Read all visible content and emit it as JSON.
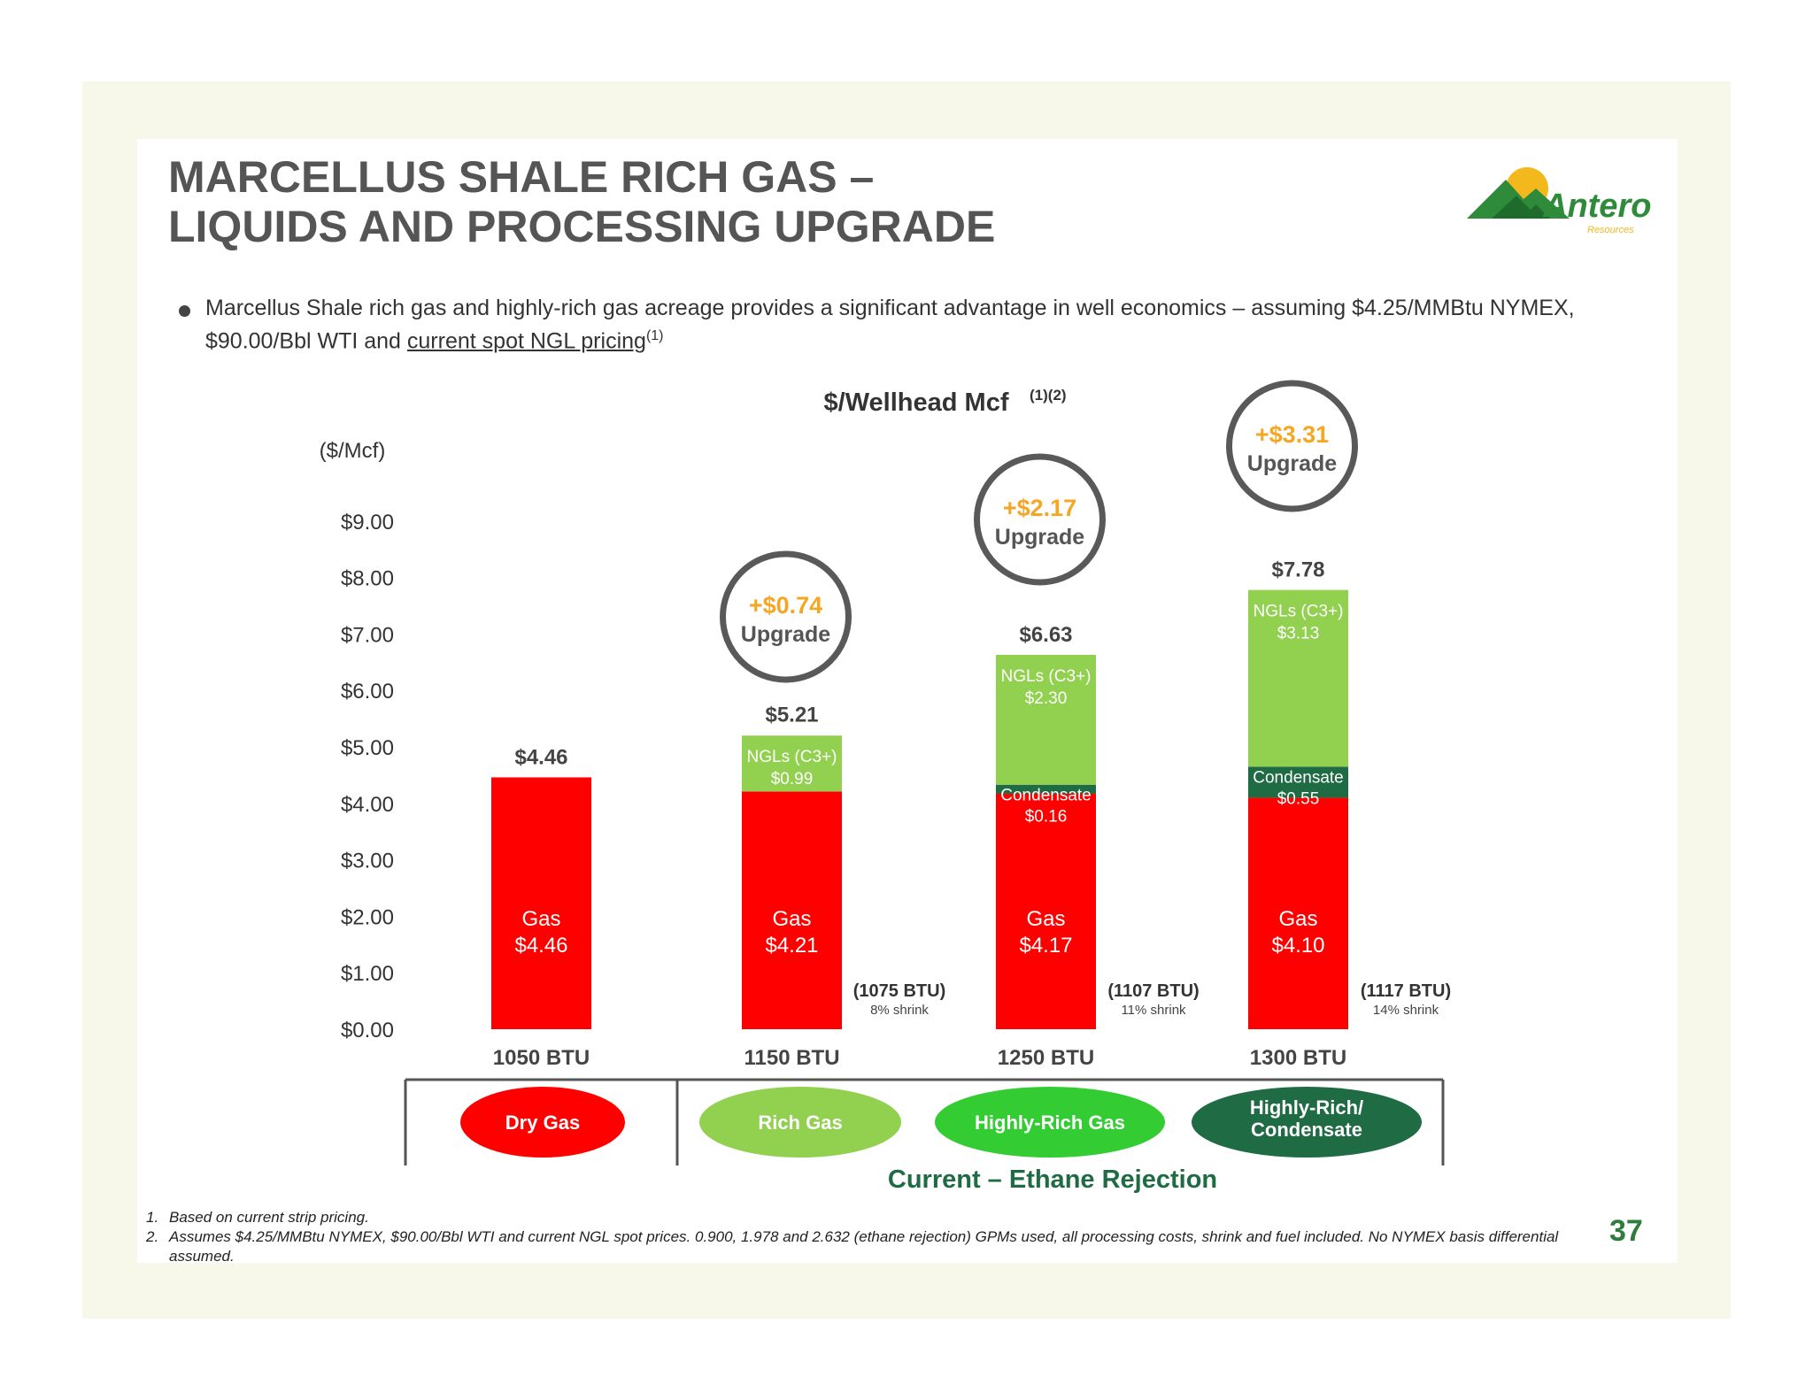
{
  "slide": {
    "title_line1": "MARCELLUS SHALE RICH GAS –",
    "title_line2": "LIQUIDS AND PROCESSING UPGRADE",
    "bullet_text": "Marcellus Shale rich gas and highly-rich gas acreage provides a significant advantage in well economics – assuming $4.25/MMBtu NYMEX, $90.00/Bbl WTI and ",
    "bullet_link": "current spot NGL pricing",
    "bullet_sup": "(1)",
    "page_number": "37"
  },
  "logo": {
    "name": "Antero",
    "subtext": "Resources",
    "icon": "mountain-sun-logo-icon",
    "colors": {
      "mountain": "#2e8b3a",
      "sun": "#f2b81c",
      "text": "#2e8b3a"
    }
  },
  "footnotes": [
    {
      "num": "1.",
      "text": "Based on current strip pricing."
    },
    {
      "num": "2.",
      "text": "Assumes $4.25/MMBtu NYMEX, $90.00/Bbl WTI and current NGL spot prices.  0.900, 1.978 and 2.632 (ethane rejection) GPMs used, all processing costs, shrink and fuel included. No NYMEX basis differential assumed."
    }
  ],
  "chart_data": {
    "type": "bar",
    "stacked": true,
    "title": "$/Wellhead Mcf",
    "title_sup": "(1)(2)",
    "ylabel": "($/Mcf)",
    "ylim": [
      0,
      9
    ],
    "yticks": [
      "$0.00",
      "$1.00",
      "$2.00",
      "$3.00",
      "$4.00",
      "$5.00",
      "$6.00",
      "$7.00",
      "$8.00",
      "$9.00"
    ],
    "categories": [
      "1050 BTU",
      "1150 BTU",
      "1250 BTU",
      "1300 BTU"
    ],
    "totals": [
      4.46,
      5.21,
      6.63,
      7.78
    ],
    "total_labels": [
      "$4.46",
      "$5.21",
      "$6.63",
      "$7.78"
    ],
    "series": [
      {
        "name": "Gas",
        "values": [
          4.46,
          4.21,
          4.17,
          4.1
        ],
        "labels": [
          "$4.46",
          "$4.21",
          "$4.17",
          "$4.10"
        ],
        "color": "#ff0000"
      },
      {
        "name": "Condensate",
        "values": [
          0,
          0,
          0.16,
          0.55
        ],
        "labels": [
          "",
          "",
          "$0.16",
          "$0.55"
        ],
        "color": "#1e6b44"
      },
      {
        "name": "NGLs (C3+)",
        "values": [
          0,
          0.99,
          2.3,
          3.13
        ],
        "labels": [
          "",
          "$0.99",
          "$2.30",
          "$3.13"
        ],
        "color": "#92d050"
      }
    ],
    "upgrades": [
      {
        "bar": 1,
        "value": "+$0.74",
        "label": "Upgrade"
      },
      {
        "bar": 2,
        "value": "+$2.17",
        "label": "Upgrade"
      },
      {
        "bar": 3,
        "value": "+$3.31",
        "label": "Upgrade"
      }
    ],
    "shrink_notes": [
      {
        "bar": 1,
        "btu": "(1075 BTU)",
        "shrink": "8% shrink"
      },
      {
        "bar": 2,
        "btu": "(1107 BTU)",
        "shrink": "11% shrink"
      },
      {
        "bar": 3,
        "btu": "(1117 BTU)",
        "shrink": "14% shrink"
      }
    ],
    "gas_types": [
      {
        "label_lines": [
          "Dry Gas"
        ],
        "color": "#ff0000"
      },
      {
        "label_lines": [
          "Rich Gas"
        ],
        "color": "#92d050"
      },
      {
        "label_lines": [
          "Highly-Rich Gas"
        ],
        "color": "#33cc33"
      },
      {
        "label_lines": [
          "Highly-Rich/",
          "Condensate"
        ],
        "color": "#1e6b44"
      }
    ],
    "bracket_label": "Current – Ethane Rejection",
    "colors": {
      "upgrade_value": "#f5a623",
      "upgrade_ring": "#595959",
      "bracket_label": "#1e6b44",
      "axis_text": "#333333"
    }
  }
}
